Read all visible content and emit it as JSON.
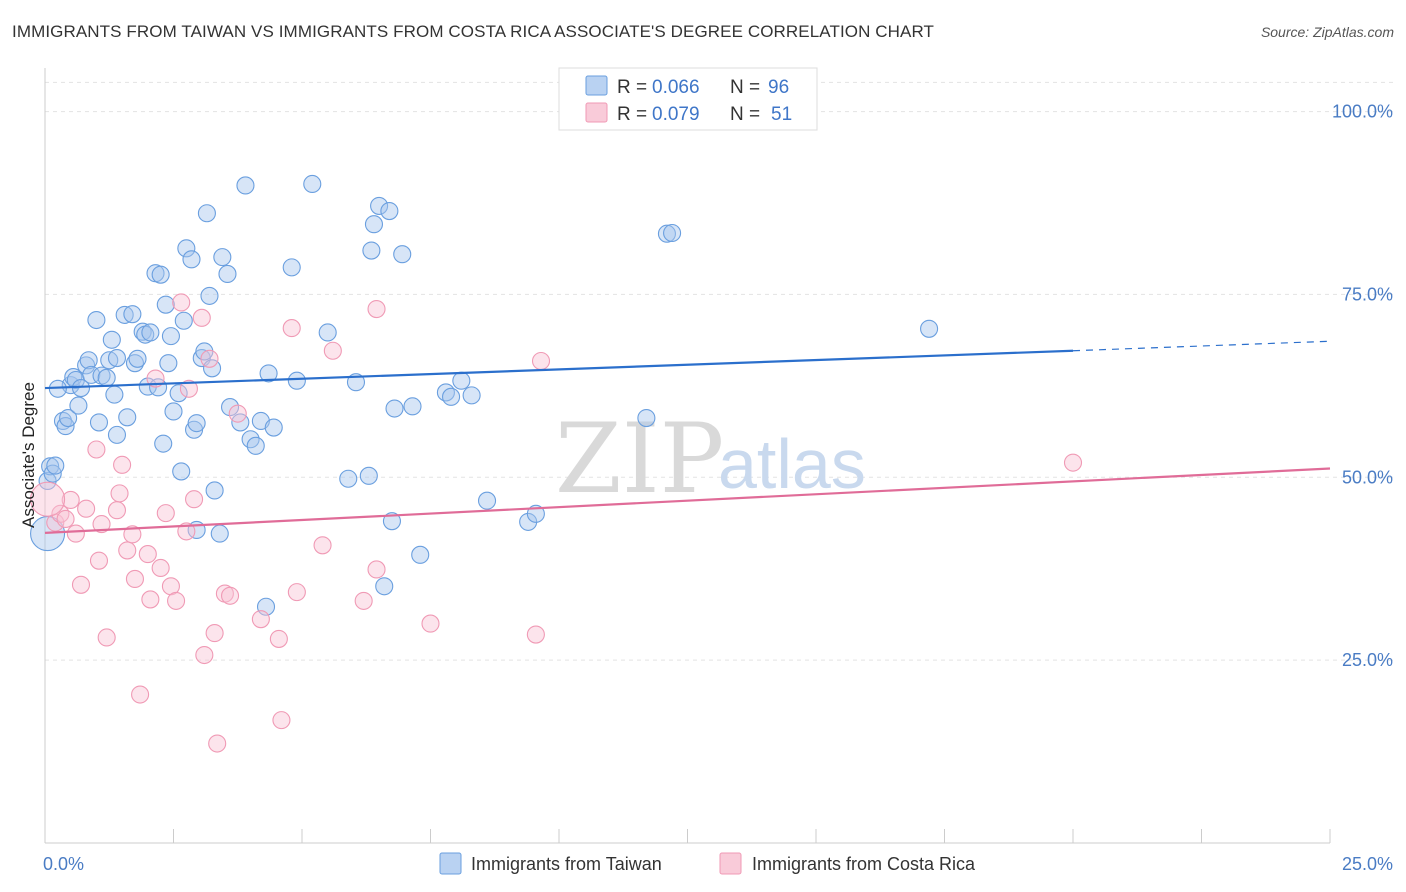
{
  "title": "IMMIGRANTS FROM TAIWAN VS IMMIGRANTS FROM COSTA RICA ASSOCIATE'S DEGREE CORRELATION CHART",
  "source": "Source: ZipAtlas.com",
  "watermark": {
    "zip": "ZIP",
    "atlas": "atlas"
  },
  "colors": {
    "taiwan": "#6a9fdf",
    "taiwan_line": "#2b6fcc",
    "costa_rica": "#f09ab5",
    "costa_rica_line": "#e06c98",
    "tick_text": "#4a7cc4"
  },
  "legend": {
    "taiwan": {
      "r_label": "R =",
      "r_value": "0.066",
      "n_label": "N =",
      "n_value": "96"
    },
    "costa_rica": {
      "r_label": "R =",
      "r_value": "0.079",
      "n_label": "N =",
      "n_value": "51"
    }
  },
  "chart_data": {
    "type": "scatter",
    "xlabel": "",
    "ylabel": "Associate's Degree",
    "xlim": [
      0,
      25
    ],
    "ylim": [
      0,
      105
    ],
    "x_tick_labels": [
      {
        "value": 0,
        "label": "0.0%"
      },
      {
        "value": 25,
        "label": "25.0%"
      }
    ],
    "y_tick_labels": [
      {
        "value": 25,
        "label": "25.0%"
      },
      {
        "value": 50,
        "label": "50.0%"
      },
      {
        "value": 75,
        "label": "75.0%"
      },
      {
        "value": 100,
        "label": "100.0%"
      }
    ],
    "series": [
      {
        "name": "Immigrants from Taiwan",
        "key": "taiwan",
        "trend": {
          "x_start": 0,
          "y_start": 62.2,
          "x_end_solid": 20.0,
          "y_end_solid": 67.3,
          "x_end": 25,
          "y_end": 68.6
        },
        "points": [
          [
            0.05,
            49.5
          ],
          [
            0.1,
            51.5
          ],
          [
            0.15,
            50.5
          ],
          [
            0.2,
            51.6
          ],
          [
            0.35,
            57.7
          ],
          [
            0.4,
            57.0
          ],
          [
            0.45,
            58.1
          ],
          [
            0.5,
            62.6
          ],
          [
            0.55,
            63.7
          ],
          [
            0.6,
            63.3
          ],
          [
            0.65,
            59.8
          ],
          [
            0.7,
            62.2
          ],
          [
            0.8,
            65.3
          ],
          [
            0.85,
            66.0
          ],
          [
            0.9,
            64.0
          ],
          [
            1.0,
            71.5
          ],
          [
            1.05,
            57.5
          ],
          [
            1.1,
            63.9
          ],
          [
            1.2,
            63.6
          ],
          [
            1.25,
            66.0
          ],
          [
            1.3,
            68.8
          ],
          [
            1.35,
            61.3
          ],
          [
            1.4,
            55.8
          ],
          [
            1.55,
            72.2
          ],
          [
            1.6,
            58.2
          ],
          [
            1.7,
            72.3
          ],
          [
            1.75,
            65.6
          ],
          [
            1.8,
            66.2
          ],
          [
            1.9,
            69.9
          ],
          [
            1.95,
            69.5
          ],
          [
            2.0,
            62.4
          ],
          [
            2.05,
            69.8
          ],
          [
            2.15,
            77.9
          ],
          [
            2.2,
            62.3
          ],
          [
            2.25,
            77.7
          ],
          [
            2.3,
            54.6
          ],
          [
            2.35,
            73.6
          ],
          [
            2.4,
            65.6
          ],
          [
            2.45,
            69.3
          ],
          [
            2.5,
            59.0
          ],
          [
            2.6,
            61.5
          ],
          [
            2.65,
            50.8
          ],
          [
            2.7,
            71.4
          ],
          [
            2.75,
            81.3
          ],
          [
            2.85,
            79.8
          ],
          [
            2.9,
            56.5
          ],
          [
            2.95,
            57.4
          ],
          [
            3.05,
            66.3
          ],
          [
            3.1,
            67.2
          ],
          [
            3.15,
            86.1
          ],
          [
            3.2,
            74.8
          ],
          [
            3.25,
            64.9
          ],
          [
            3.3,
            48.2
          ],
          [
            3.4,
            42.3
          ],
          [
            3.45,
            80.1
          ],
          [
            3.55,
            77.8
          ],
          [
            3.6,
            59.6
          ],
          [
            3.8,
            57.5
          ],
          [
            3.9,
            89.9
          ],
          [
            4.0,
            55.2
          ],
          [
            4.1,
            54.3
          ],
          [
            4.2,
            57.7
          ],
          [
            4.3,
            32.3
          ],
          [
            4.35,
            64.2
          ],
          [
            4.45,
            56.8
          ],
          [
            4.8,
            78.7
          ],
          [
            4.9,
            63.2
          ],
          [
            5.2,
            90.1
          ],
          [
            5.5,
            69.8
          ],
          [
            5.9,
            49.8
          ],
          [
            6.05,
            63.0
          ],
          [
            6.3,
            50.2
          ],
          [
            6.35,
            81.0
          ],
          [
            6.4,
            84.6
          ],
          [
            6.5,
            87.1
          ],
          [
            6.6,
            35.1
          ],
          [
            6.7,
            86.4
          ],
          [
            6.75,
            44.0
          ],
          [
            6.8,
            59.4
          ],
          [
            6.95,
            80.5
          ],
          [
            7.15,
            59.7
          ],
          [
            7.3,
            39.4
          ],
          [
            7.8,
            61.6
          ],
          [
            7.9,
            61.0
          ],
          [
            8.1,
            63.2
          ],
          [
            8.3,
            61.2
          ],
          [
            8.6,
            46.8
          ],
          [
            9.4,
            43.9
          ],
          [
            9.55,
            45.0
          ],
          [
            11.7,
            58.1
          ],
          [
            12.1,
            83.3
          ],
          [
            12.2,
            83.4
          ],
          [
            17.2,
            70.3
          ],
          [
            2.95,
            42.8
          ],
          [
            1.4,
            66.3
          ],
          [
            0.25,
            62.1
          ]
        ],
        "big_points": [
          [
            0.05,
            42.3
          ]
        ]
      },
      {
        "name": "Immigrants from Costa Rica",
        "key": "costa_rica",
        "trend": {
          "x_start": 0,
          "y_start": 42.4,
          "x_end_solid": 25,
          "y_end_solid": 51.2,
          "x_end": 25,
          "y_end": 51.2
        },
        "points": [
          [
            0.2,
            43.8
          ],
          [
            0.3,
            45.0
          ],
          [
            0.4,
            44.3
          ],
          [
            0.5,
            46.9
          ],
          [
            0.6,
            42.3
          ],
          [
            0.7,
            35.3
          ],
          [
            0.8,
            45.7
          ],
          [
            1.0,
            53.8
          ],
          [
            1.05,
            38.6
          ],
          [
            1.1,
            43.6
          ],
          [
            1.2,
            28.1
          ],
          [
            1.4,
            45.5
          ],
          [
            1.45,
            47.8
          ],
          [
            1.5,
            51.7
          ],
          [
            1.6,
            40.0
          ],
          [
            1.7,
            42.2
          ],
          [
            1.75,
            36.1
          ],
          [
            1.85,
            20.3
          ],
          [
            2.0,
            39.5
          ],
          [
            2.05,
            33.3
          ],
          [
            2.15,
            63.5
          ],
          [
            2.25,
            37.6
          ],
          [
            2.35,
            45.1
          ],
          [
            2.45,
            35.1
          ],
          [
            2.55,
            33.1
          ],
          [
            2.65,
            73.9
          ],
          [
            2.75,
            42.6
          ],
          [
            2.8,
            62.1
          ],
          [
            2.9,
            47.0
          ],
          [
            3.05,
            71.8
          ],
          [
            3.1,
            25.7
          ],
          [
            3.2,
            66.2
          ],
          [
            3.3,
            28.7
          ],
          [
            3.35,
            13.6
          ],
          [
            3.5,
            34.1
          ],
          [
            3.6,
            33.8
          ],
          [
            3.75,
            58.7
          ],
          [
            4.2,
            30.6
          ],
          [
            4.55,
            27.9
          ],
          [
            4.6,
            16.8
          ],
          [
            4.8,
            70.4
          ],
          [
            4.9,
            34.3
          ],
          [
            5.4,
            40.7
          ],
          [
            5.6,
            67.3
          ],
          [
            6.2,
            33.1
          ],
          [
            6.45,
            37.4
          ],
          [
            6.45,
            73.0
          ],
          [
            7.5,
            30.0
          ],
          [
            9.55,
            28.5
          ],
          [
            9.65,
            65.9
          ],
          [
            20.0,
            52.0
          ]
        ],
        "big_points": [
          [
            0.05,
            47.0
          ]
        ]
      }
    ]
  },
  "bottom_legend": {
    "taiwan": "Immigrants from Taiwan",
    "costa_rica": "Immigrants from Costa Rica"
  }
}
